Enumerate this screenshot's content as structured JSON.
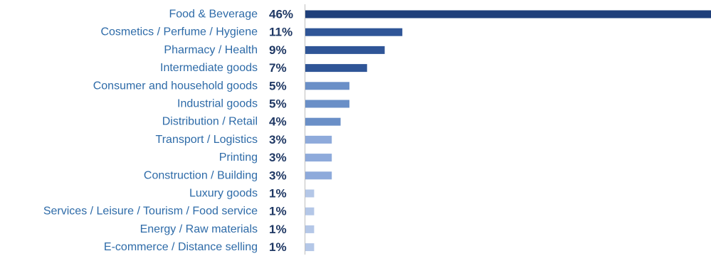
{
  "chart_data": {
    "type": "bar",
    "orientation": "horizontal",
    "categories": [
      "Food & Beverage",
      "Cosmetics / Perfume / Hygiene",
      "Pharmacy / Health",
      "Intermediate goods",
      "Consumer and household goods",
      "Industrial goods",
      "Distribution / Retail",
      "Transport / Logistics",
      "Printing",
      "Construction / Building",
      "Luxury goods",
      "Services / Leisure / Tourism / Food service",
      "Energy / Raw materials",
      "E-commerce / Distance selling"
    ],
    "values": [
      46,
      11,
      9,
      7,
      5,
      5,
      4,
      3,
      3,
      3,
      1,
      1,
      1,
      1
    ],
    "value_labels": [
      "46%",
      "11%",
      "9%",
      "7%",
      "5%",
      "5%",
      "4%",
      "3%",
      "3%",
      "3%",
      "1%",
      "1%",
      "1%",
      "1%"
    ],
    "bar_colors": [
      "#1f3f7a",
      "#2f5597",
      "#2f5597",
      "#2f5597",
      "#6a8fc7",
      "#6a8fc7",
      "#6a8fc7",
      "#8eaadb",
      "#8eaadb",
      "#8eaadb",
      "#b4c7e7",
      "#b4c7e7",
      "#b4c7e7",
      "#b4c7e7"
    ],
    "label_color": "#2e6ba8",
    "value_color": "#1f3864",
    "axis_color": "#bfbfbf",
    "title": "",
    "xlabel": "",
    "ylabel": "",
    "xlim": [
      0,
      46
    ],
    "grid": false,
    "legend": "none"
  }
}
